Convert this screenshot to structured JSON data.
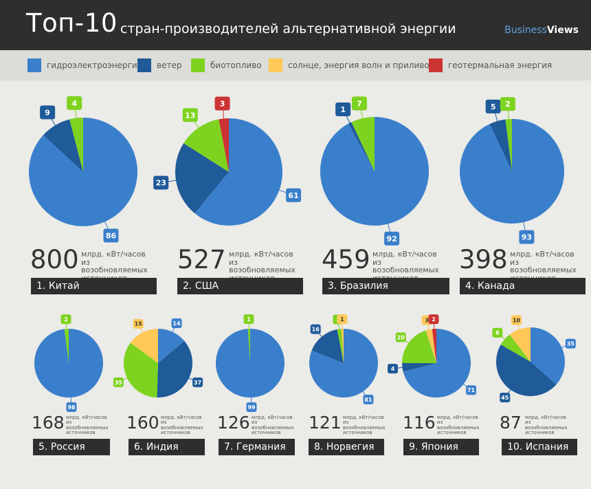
{
  "header": {
    "title_main": "Топ-10",
    "title_sub": "стран-производителей альтернативной энергии",
    "brand_business": "Business",
    "brand_views": "Views"
  },
  "legend": [
    {
      "label": "гидроэлектроэнергия",
      "color": "#3a7fcb"
    },
    {
      "label": "ветер",
      "color": "#1f5a99"
    },
    {
      "label": "биотопливо",
      "color": "#7ed321"
    },
    {
      "label": "солнце, энергия волн и приливов",
      "color": "#ffc857"
    },
    {
      "label": "геотермальная энергия",
      "color": "#cc3333"
    }
  ],
  "unit_text": [
    "млрд. кВт/часов",
    "из возобновляемых",
    "источников"
  ],
  "chart_data": {
    "type": "pie",
    "series_names": [
      "гидроэлектроэнергия",
      "ветер",
      "биотопливо",
      "солнце, энергия волн и приливов",
      "геотермальная энергия"
    ],
    "countries": [
      {
        "rank": "1.",
        "name": "Китай",
        "total": "800",
        "values": [
          86,
          9,
          4,
          0,
          0
        ]
      },
      {
        "rank": "2.",
        "name": "США",
        "total": "527",
        "values": [
          61,
          23,
          13,
          0,
          3
        ]
      },
      {
        "rank": "3.",
        "name": "Бразилия",
        "total": "459",
        "values": [
          92,
          1,
          7,
          0,
          0
        ]
      },
      {
        "rank": "4.",
        "name": "Канада",
        "total": "398",
        "values": [
          93,
          5,
          2,
          0,
          0
        ]
      },
      {
        "rank": "5.",
        "name": "Россия",
        "total": "168",
        "values": [
          98,
          0,
          2,
          0,
          0
        ]
      },
      {
        "rank": "6.",
        "name": "Индия",
        "total": "160",
        "values": [
          14,
          37,
          35,
          15,
          0
        ]
      },
      {
        "rank": "7.",
        "name": "Германия",
        "total": "126",
        "values": [
          99,
          0,
          1,
          0,
          0
        ]
      },
      {
        "rank": "8.",
        "name": "Норвегия",
        "total": "121",
        "values": [
          81,
          16,
          2,
          1,
          0
        ]
      },
      {
        "rank": "9.",
        "name": "Япония",
        "total": "116",
        "values": [
          71,
          4,
          20,
          3,
          2
        ]
      },
      {
        "rank": "10.",
        "name": "Испания",
        "total": "87",
        "values": [
          35,
          45,
          6,
          10,
          0
        ]
      }
    ]
  }
}
